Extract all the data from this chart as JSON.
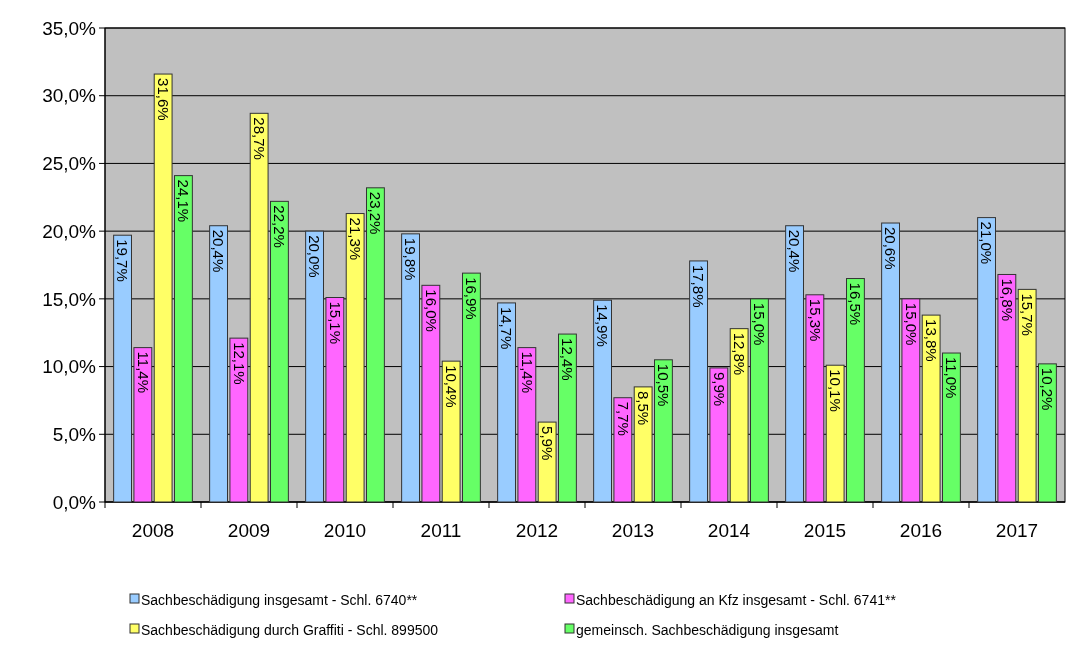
{
  "chart_data": {
    "type": "bar",
    "categories": [
      "2008",
      "2009",
      "2010",
      "2011",
      "2012",
      "2013",
      "2014",
      "2015",
      "2016",
      "2017"
    ],
    "series": [
      {
        "name": "Sachbeschädigung insgesamt - Schl. 6740**",
        "color": "#99ccff",
        "values": [
          19.7,
          20.4,
          20.0,
          19.8,
          14.7,
          14.9,
          17.8,
          20.4,
          20.6,
          21.0
        ],
        "value_labels": [
          "19,7%",
          "20,4%",
          "20,0%",
          "19,8%",
          "14,7%",
          "14,9%",
          "17,8%",
          "20,4%",
          "20,6%",
          "21,0%"
        ]
      },
      {
        "name": "Sachbeschädigung an Kfz insgesamt - Schl. 6741**",
        "color": "#ff66ff",
        "values": [
          11.4,
          12.1,
          15.1,
          16.0,
          11.4,
          7.7,
          9.9,
          15.3,
          15.0,
          16.8
        ],
        "value_labels": [
          "11,4%",
          "12,1%",
          "15,1%",
          "16,0%",
          "11,4%",
          "7,7%",
          "9,9%",
          "15,3%",
          "15,0%",
          "16,8%"
        ]
      },
      {
        "name": "Sachbeschädigung durch Graffiti - Schl. 899500",
        "color": "#ffff66",
        "values": [
          31.6,
          28.7,
          21.3,
          10.4,
          5.9,
          8.5,
          12.8,
          10.1,
          13.8,
          15.7
        ],
        "value_labels": [
          "31,6%",
          "28,7%",
          "21,3%",
          "10,4%",
          "5,9%",
          "8,5%",
          "12,8%",
          "10,1%",
          "13,8%",
          "15,7%"
        ]
      },
      {
        "name": "gemeinsch. Sachbeschädigung insgesamt",
        "color": "#66ff66",
        "values": [
          24.1,
          22.2,
          23.2,
          16.9,
          12.4,
          10.5,
          15.0,
          16.5,
          11.0,
          10.2
        ],
        "value_labels": [
          "24,1%",
          "22,2%",
          "23,2%",
          "16,9%",
          "12,4%",
          "10,5%",
          "15,0%",
          "16,5%",
          "11,0%",
          "10,2%"
        ]
      }
    ],
    "ylim": [
      0,
      35
    ],
    "yticks": [
      {
        "value": 0,
        "label": "0,0%"
      },
      {
        "value": 5,
        "label": "5,0%"
      },
      {
        "value": 10,
        "label": "10,0%"
      },
      {
        "value": 15,
        "label": "15,0%"
      },
      {
        "value": 20,
        "label": "20,0%"
      },
      {
        "value": 25,
        "label": "25,0%"
      },
      {
        "value": 30,
        "label": "30,0%"
      },
      {
        "value": 35,
        "label": "35,0%"
      }
    ],
    "grid": "y",
    "legend": "bottom"
  }
}
